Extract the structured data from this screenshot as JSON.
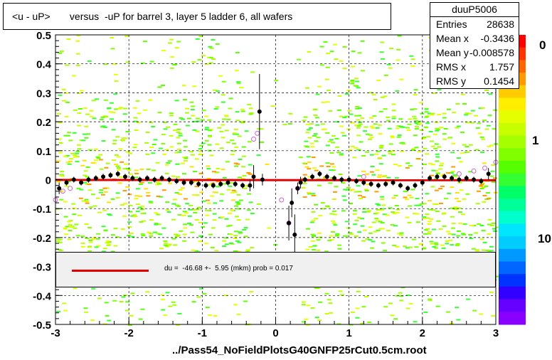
{
  "title": "<u - uP>       versus  -uP for barrel 3, layer 5 ladder 6, all wafers",
  "stats": {
    "name": "duuP5006",
    "rows": [
      {
        "k": "Entries",
        "v": "28638"
      },
      {
        "k": "Mean x",
        "v": "-0.3436"
      },
      {
        "k": "Mean y",
        "v": "-0.008578"
      },
      {
        "k": "RMS x",
        "v": "1.757"
      },
      {
        "k": "RMS y",
        "v": "0.1454"
      }
    ]
  },
  "fit_text": "du =  -46.68 +-  5.95 (mkm) prob = 0.017",
  "xlabel": "../Pass54_NoFieldPlotsG40GNFP25rCut0.5cm.root",
  "zaxis_labels": [
    "0",
    "1",
    "10"
  ],
  "colors": {
    "fit": "#e00000",
    "profile": "#000000",
    "open_markers": "#cc66cc"
  },
  "chart_data": {
    "type": "scatter",
    "subtype": "2D histogram with profile",
    "xlim": [
      -3,
      3
    ],
    "ylim": [
      -0.5,
      0.5
    ],
    "xticks": [
      "-3",
      "-2",
      "-1",
      "0",
      "1",
      "2",
      "3"
    ],
    "yticks": [
      "-0.5",
      "-0.4",
      "-0.3",
      "-0.2",
      "-0.1",
      "0",
      "0.1",
      "0.2",
      "0.3",
      "0.4",
      "0.5"
    ],
    "grid": true,
    "fit_line": {
      "x": [
        -3,
        3
      ],
      "y": [
        -0.001,
        -0.002
      ]
    },
    "profile": {
      "x": [
        -2.95,
        -2.85,
        -2.75,
        -2.65,
        -2.55,
        -2.45,
        -2.35,
        -2.25,
        -2.15,
        -2.05,
        -1.95,
        -1.85,
        -1.75,
        -1.65,
        -1.55,
        -1.45,
        -1.35,
        -1.25,
        -1.15,
        -1.05,
        -0.95,
        -0.85,
        -0.75,
        -0.65,
        -0.55,
        -0.45,
        -0.35,
        -0.3,
        -0.22,
        -0.18,
        0.18,
        0.22,
        0.26,
        0.3,
        0.34,
        0.4,
        0.5,
        0.6,
        0.7,
        0.8,
        0.9,
        1.0,
        1.1,
        1.2,
        1.3,
        1.4,
        1.5,
        1.6,
        1.7,
        1.8,
        1.9,
        2.0,
        2.1,
        2.2,
        2.3,
        2.4,
        2.5,
        2.6,
        2.7,
        2.8,
        2.9
      ],
      "y": [
        -0.03,
        -0.01,
        0.0,
        -0.01,
        0.0,
        0.005,
        0.01,
        0.015,
        0.02,
        0.01,
        0.005,
        0.0,
        0.005,
        0.0,
        0.005,
        0.0,
        -0.005,
        -0.01,
        -0.01,
        -0.015,
        -0.02,
        -0.02,
        -0.015,
        -0.01,
        -0.015,
        -0.02,
        -0.02,
        0.01,
        0.235,
        0.0,
        -0.15,
        -0.08,
        -0.19,
        -0.03,
        -0.01,
        0.0,
        0.01,
        0.02,
        0.01,
        0.005,
        0.0,
        0.0,
        -0.005,
        -0.01,
        -0.015,
        -0.02,
        -0.015,
        -0.01,
        -0.02,
        -0.03,
        -0.02,
        -0.01,
        0.005,
        0.01,
        0.01,
        0.005,
        0.0,
        0.005,
        0.0,
        -0.005,
        0.02
      ],
      "yerr": [
        0.02,
        0.01,
        0.01,
        0.01,
        0.01,
        0.01,
        0.01,
        0.01,
        0.01,
        0.01,
        0.01,
        0.01,
        0.01,
        0.01,
        0.01,
        0.01,
        0.01,
        0.01,
        0.01,
        0.01,
        0.01,
        0.01,
        0.01,
        0.01,
        0.01,
        0.01,
        0.02,
        0.04,
        0.13,
        0.02,
        0.06,
        0.05,
        0.07,
        0.02,
        0.02,
        0.01,
        0.01,
        0.01,
        0.01,
        0.01,
        0.01,
        0.01,
        0.01,
        0.01,
        0.01,
        0.01,
        0.01,
        0.01,
        0.01,
        0.01,
        0.01,
        0.01,
        0.01,
        0.01,
        0.01,
        0.01,
        0.01,
        0.01,
        0.01,
        0.01,
        0.02
      ]
    },
    "open_points": {
      "x": [
        -3.0,
        -2.9,
        -2.8,
        -0.3,
        -0.25,
        0.08,
        0.18,
        0.3,
        1.2,
        2.5,
        2.7,
        2.85,
        3.0
      ],
      "y": [
        -0.07,
        -0.04,
        -0.03,
        0.14,
        0.16,
        -0.07,
        -0.15,
        -0.03,
        0.01,
        0.02,
        0.03,
        0.04,
        0.06
      ]
    }
  }
}
